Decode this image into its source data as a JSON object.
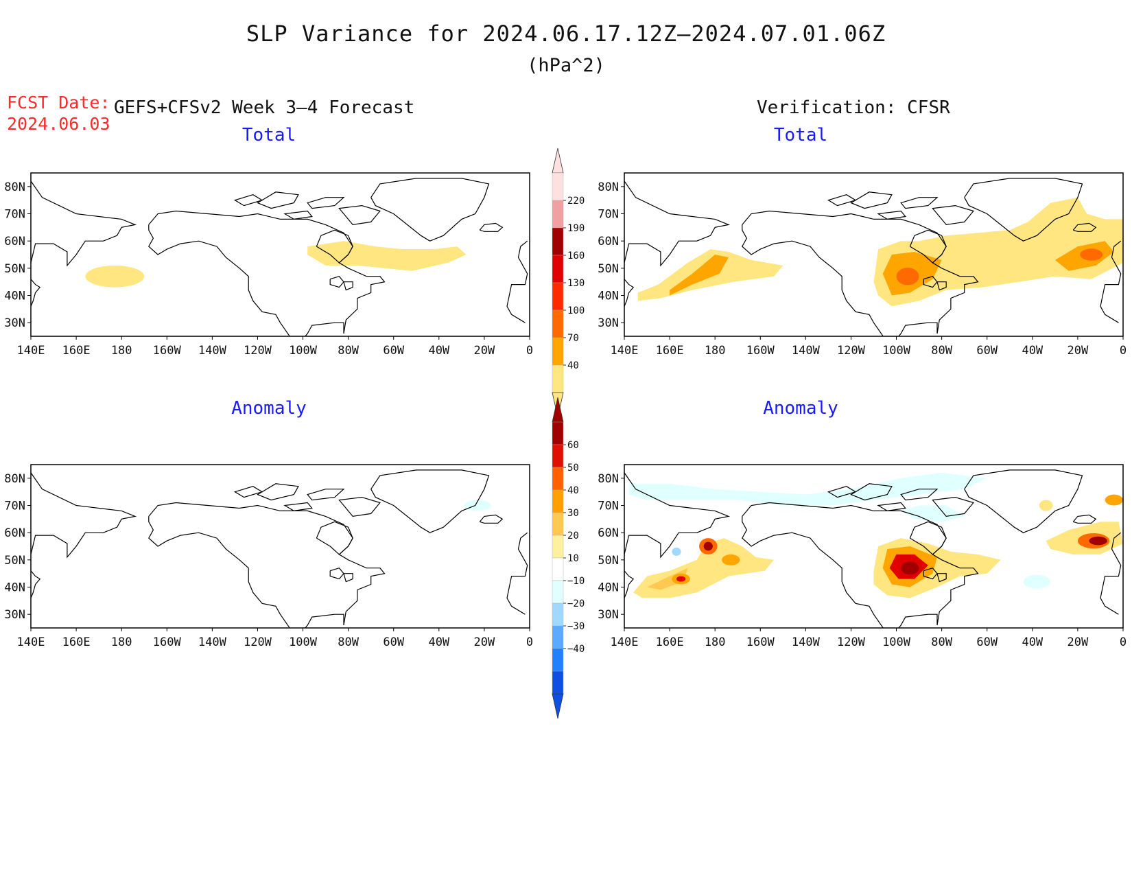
{
  "title": "SLP Variance for 2024.06.17.12Z–2024.07.01.06Z",
  "units": "(hPa^2)",
  "fcst": {
    "label": "FCST Date:",
    "date": "2024.06.03"
  },
  "headers": {
    "left": "GEFS+CFSv2 Week 3–4 Forecast",
    "right": "Verification: CFSR"
  },
  "panels": [
    {
      "id": "forecast-total",
      "title": "Total"
    },
    {
      "id": "verification-total",
      "title": "Total"
    },
    {
      "id": "forecast-anomaly",
      "title": "Anomaly"
    },
    {
      "id": "verification-anomaly",
      "title": "Anomaly"
    }
  ],
  "axes": {
    "lon_labels": [
      "140E",
      "160E",
      "180",
      "160W",
      "140W",
      "120W",
      "100W",
      "80W",
      "60W",
      "40W",
      "20W",
      "0"
    ],
    "lat_labels": [
      "80N",
      "70N",
      "60N",
      "50N",
      "40N",
      "30N"
    ],
    "lon_range": [
      140,
      360
    ],
    "lat_range": [
      25,
      85
    ]
  },
  "colorbars": {
    "total": {
      "labels": [
        "40",
        "70",
        "100",
        "130",
        "160",
        "190",
        "220"
      ],
      "colors": [
        "#ffe680",
        "#ffa500",
        "#ff6a00",
        "#ff2a00",
        "#e00000",
        "#a00000",
        "#f0a0a0",
        "#ffe0e0"
      ]
    },
    "anomaly": {
      "labels": [
        "60",
        "50",
        "40",
        "30",
        "20",
        "10",
        "−10",
        "−20",
        "−30",
        "−40"
      ],
      "colors": [
        "#a00000",
        "#e01000",
        "#ff6000",
        "#ffa000",
        "#ffc850",
        "#fff0a0",
        "#ffffff",
        "#e0ffff",
        "#a0d8ff",
        "#5aaaff",
        "#2080ff",
        "#1050e0"
      ]
    }
  },
  "legend_colors": {
    "pale_yellow": "#ffe680",
    "orange": "#ffa500",
    "dark_orange": "#ff6a00",
    "red": "#e00000",
    "dark_red": "#a00000",
    "light_cyan": "#e0ffff",
    "light_blue": "#a0d8ff"
  }
}
